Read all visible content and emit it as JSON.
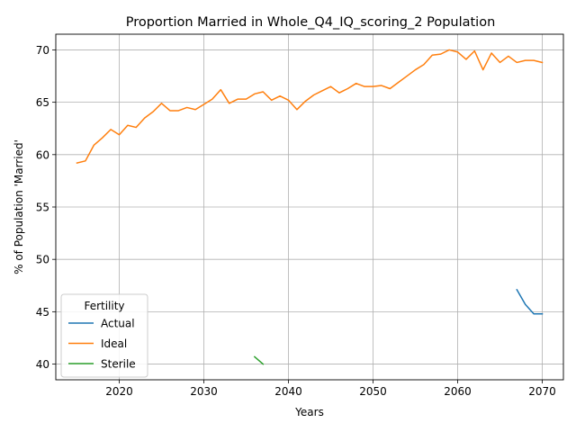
{
  "chart_data": {
    "type": "line",
    "title": "Proportion Married in Whole_Q4_IQ_scoring_2 Population",
    "xlabel": "Years",
    "ylabel": "% of Population 'Married'",
    "xlim": [
      2012.5,
      2072.5
    ],
    "ylim": [
      38.5,
      71.5
    ],
    "x_ticks": [
      2020,
      2030,
      2040,
      2050,
      2060,
      2070
    ],
    "y_ticks": [
      40,
      45,
      50,
      55,
      60,
      65,
      70
    ],
    "grid": true,
    "legend": {
      "title": "Fertility",
      "placement": "lower-left"
    },
    "series": [
      {
        "name": "Actual",
        "color": "#1f77b4",
        "x": [
          2067,
          2068,
          2069,
          2070
        ],
        "values": [
          47.1,
          45.7,
          44.8,
          44.8
        ]
      },
      {
        "name": "Ideal",
        "color": "#ff7f0e",
        "x": [
          2015,
          2016,
          2017,
          2018,
          2019,
          2020,
          2021,
          2022,
          2023,
          2024,
          2025,
          2026,
          2027,
          2028,
          2029,
          2030,
          2031,
          2032,
          2033,
          2034,
          2035,
          2036,
          2037,
          2038,
          2039,
          2040,
          2041,
          2042,
          2043,
          2044,
          2045,
          2046,
          2047,
          2048,
          2049,
          2050,
          2051,
          2052,
          2053,
          2054,
          2055,
          2056,
          2057,
          2058,
          2059,
          2060,
          2061,
          2062,
          2063,
          2064,
          2065,
          2066,
          2067,
          2068,
          2069,
          2070
        ],
        "values": [
          59.2,
          59.4,
          60.9,
          61.6,
          62.4,
          61.9,
          62.8,
          62.6,
          63.5,
          64.1,
          64.9,
          64.2,
          64.2,
          64.5,
          64.3,
          64.8,
          65.3,
          66.2,
          64.9,
          65.3,
          65.3,
          65.8,
          66.0,
          65.2,
          65.6,
          65.2,
          64.3,
          65.1,
          65.7,
          66.1,
          66.5,
          65.9,
          66.3,
          66.8,
          66.5,
          66.5,
          66.6,
          66.3,
          66.9,
          67.5,
          68.1,
          68.6,
          69.5,
          69.6,
          70.0,
          69.8,
          69.1,
          69.9,
          68.1,
          69.7,
          68.8,
          69.4,
          68.8,
          69.0,
          69.0,
          68.8
        ]
      },
      {
        "name": "Sterile",
        "color": "#2ca02c",
        "x": [
          2036,
          2037
        ],
        "values": [
          40.7,
          40.0
        ]
      }
    ]
  }
}
